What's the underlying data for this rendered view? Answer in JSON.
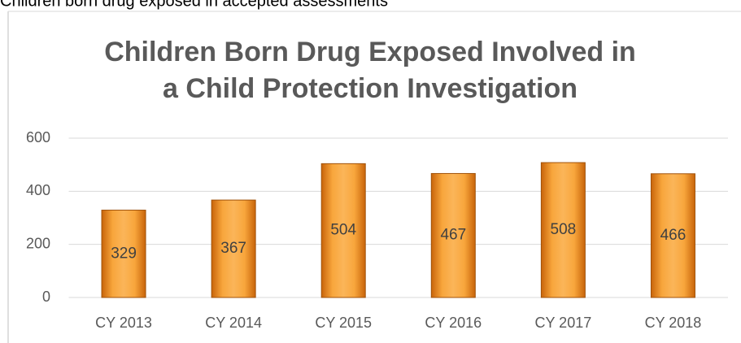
{
  "caption": "Children born drug exposed in accepted assessments",
  "chart_data": {
    "type": "bar",
    "title": [
      "Children Born Drug Exposed Involved in",
      "a Child Protection Investigation"
    ],
    "categories": [
      "CY 2013",
      "CY 2014",
      "CY 2015",
      "CY 2016",
      "CY 2017",
      "CY 2018"
    ],
    "values": [
      329,
      367,
      504,
      467,
      508,
      466
    ],
    "color": "#f0962a",
    "ylim": [
      0,
      600
    ],
    "yticks": [
      0,
      200,
      400,
      600
    ],
    "grid": true
  }
}
